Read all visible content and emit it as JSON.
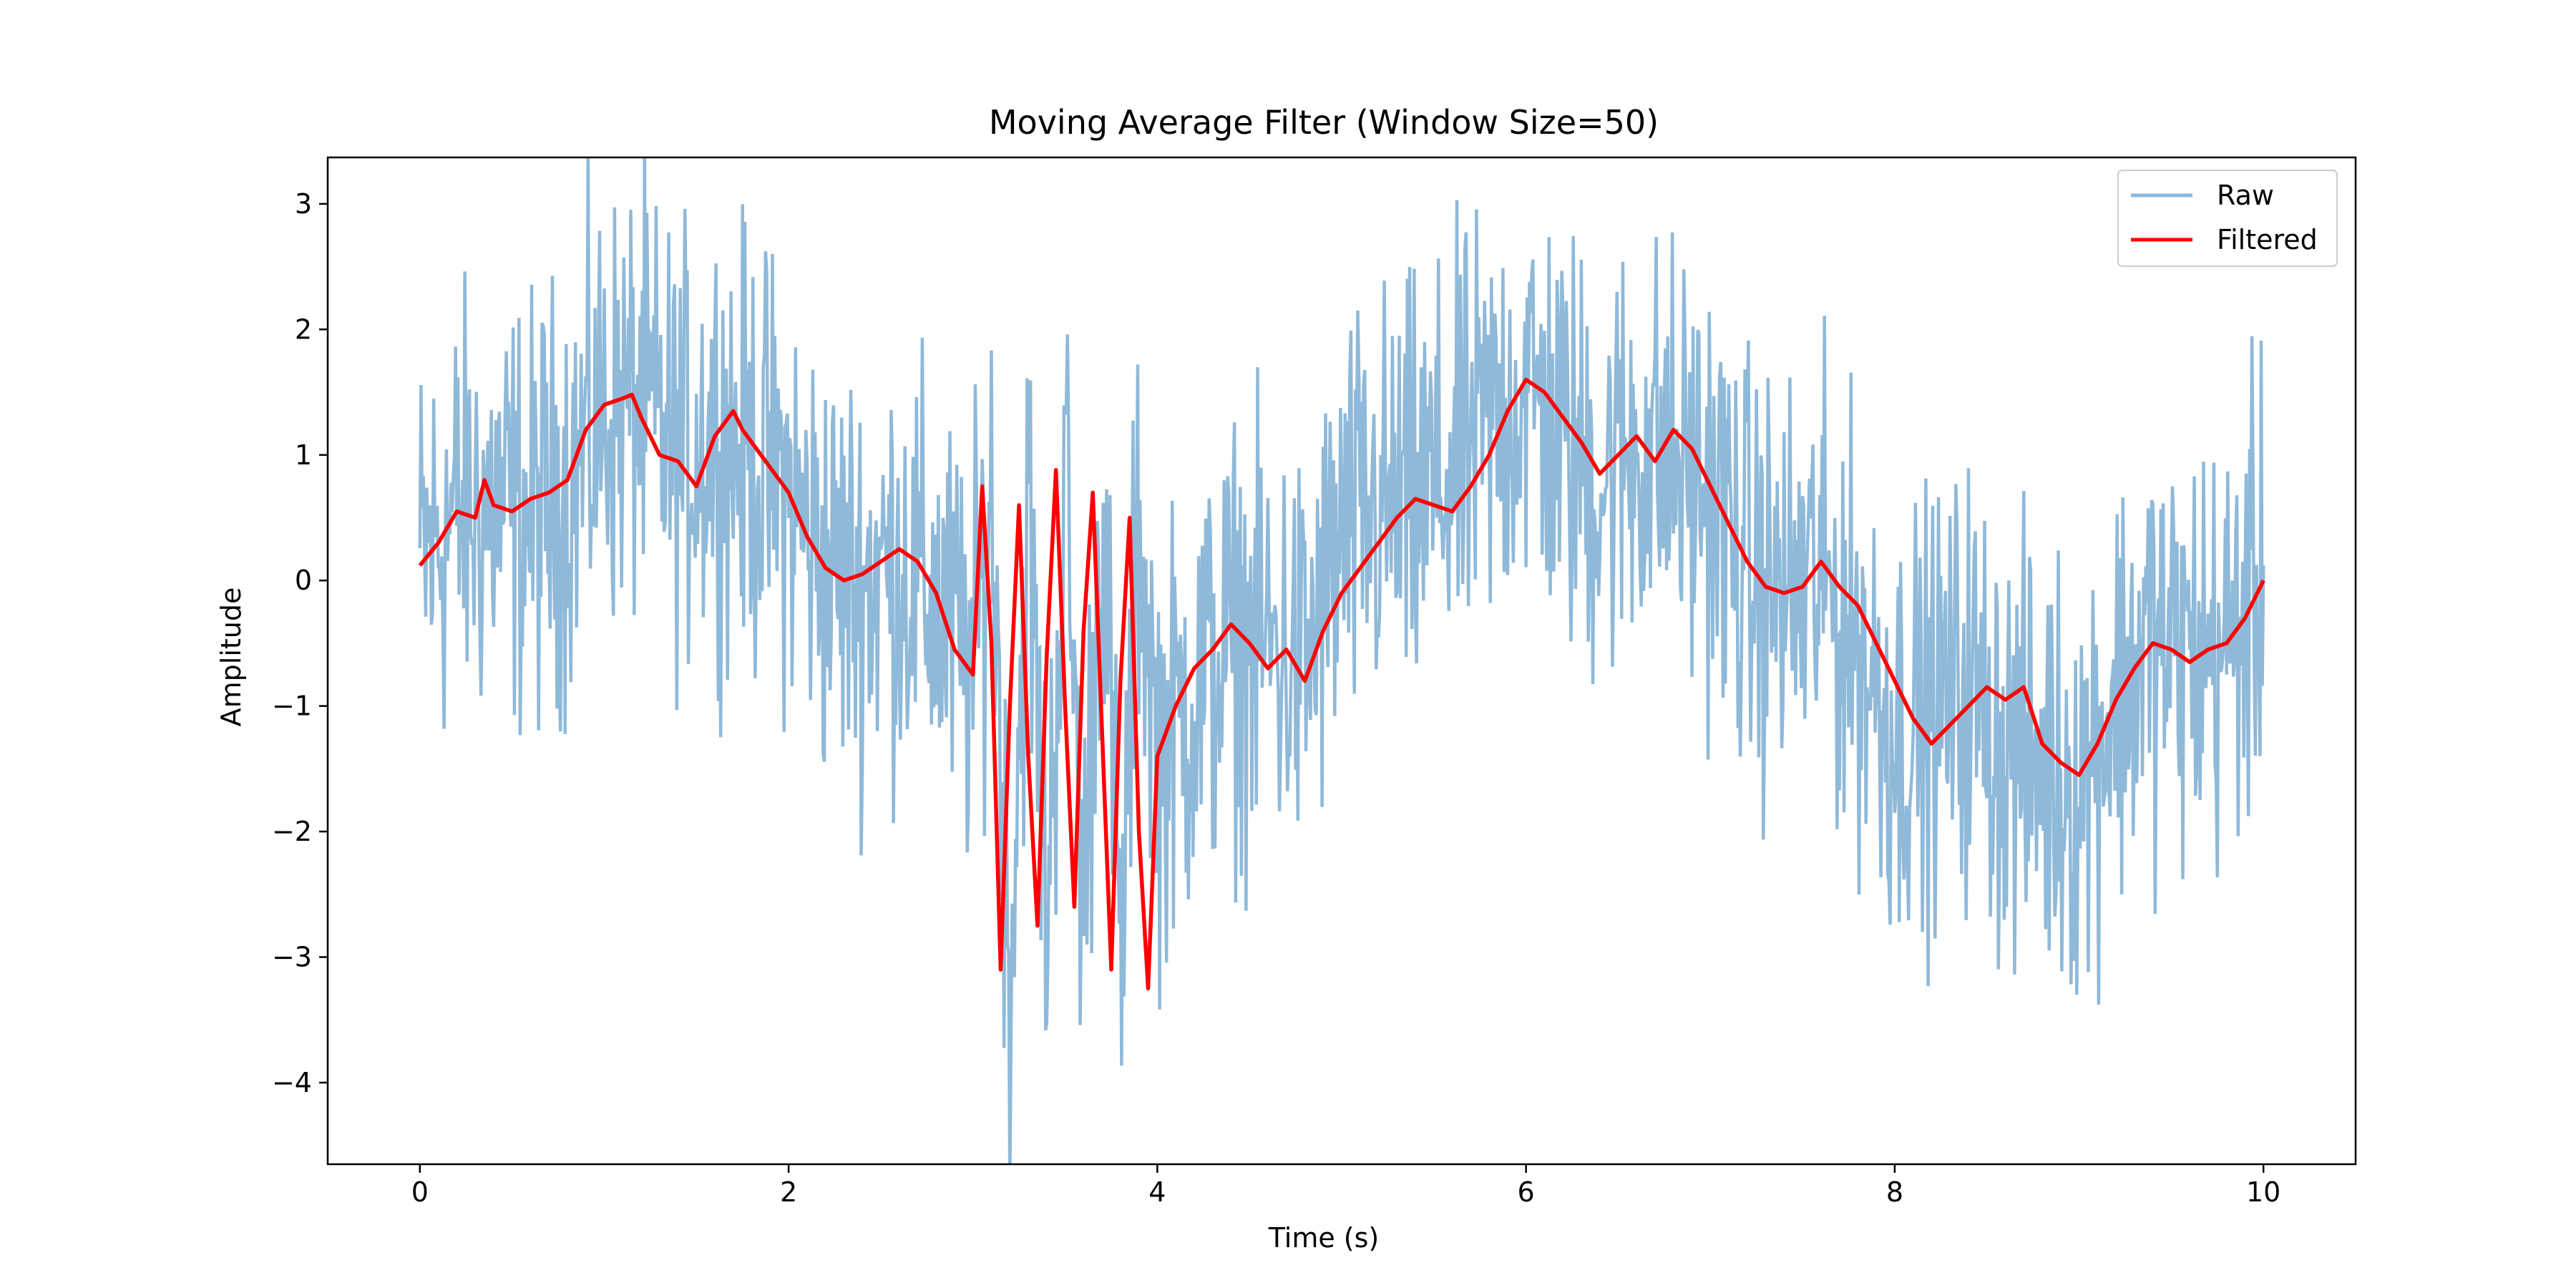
{
  "chart_data": {
    "type": "line",
    "title": "Moving Average Filter (Window Size=50)",
    "xlabel": "Time (s)",
    "ylabel": "Amplitude",
    "xlim": [
      -0.5,
      10.5
    ],
    "ylim": [
      -4.65,
      3.37
    ],
    "xticks": [
      0,
      2,
      4,
      6,
      8,
      10
    ],
    "xtick_labels": [
      "0",
      "2",
      "4",
      "6",
      "8",
      "10"
    ],
    "yticks": [
      -4,
      -3,
      -2,
      -1,
      0,
      1,
      2,
      3
    ],
    "ytick_labels": [
      "−4",
      "−3",
      "−2",
      "−1",
      "0",
      "1",
      "2",
      "3"
    ],
    "grid": false,
    "legend_position": "top-right",
    "series": [
      {
        "name": "Raw",
        "color": "#8fb9d9",
        "noise_amplitude": 0.85,
        "x": [
          0,
          0.2,
          0.4,
          0.6,
          0.8,
          1.0,
          1.2,
          1.4,
          1.6,
          1.8,
          2.0,
          2.2,
          2.4,
          2.6,
          2.8,
          3.0,
          3.1,
          3.2,
          3.3,
          3.4,
          3.5,
          3.6,
          3.7,
          3.8,
          3.9,
          4.0,
          4.2,
          4.4,
          4.6,
          4.8,
          5.0,
          5.2,
          5.4,
          5.6,
          5.8,
          6.0,
          6.2,
          6.4,
          6.6,
          6.8,
          7.0,
          7.2,
          7.4,
          7.6,
          7.8,
          8.0,
          8.2,
          8.4,
          8.6,
          8.8,
          9.0,
          9.2,
          9.4,
          9.6,
          9.8,
          10.0
        ],
        "y": [
          0.1,
          0.55,
          0.6,
          0.5,
          0.75,
          1.35,
          1.4,
          1.0,
          1.2,
          1.0,
          0.7,
          0.1,
          0.0,
          0.15,
          -0.2,
          -0.7,
          0.7,
          -3.1,
          0.6,
          -2.7,
          0.85,
          -2.6,
          0.7,
          -3.1,
          0.5,
          -1.4,
          -0.9,
          -0.5,
          -0.5,
          -0.7,
          0.3,
          0.55,
          0.6,
          0.85,
          1.2,
          1.55,
          1.1,
          0.8,
          1.1,
          0.95,
          0.7,
          0.05,
          -0.15,
          0.0,
          -0.5,
          -1.2,
          -1.05,
          -0.8,
          -1.35,
          -1.45,
          -1.6,
          -0.9,
          -0.5,
          -0.6,
          -0.55,
          0.0
        ]
      },
      {
        "name": "Filtered",
        "color": "#ff0000",
        "x": [
          0,
          0.1,
          0.2,
          0.3,
          0.35,
          0.4,
          0.5,
          0.6,
          0.7,
          0.8,
          0.9,
          1.0,
          1.1,
          1.15,
          1.2,
          1.3,
          1.4,
          1.5,
          1.6,
          1.7,
          1.75,
          1.8,
          1.9,
          2.0,
          2.1,
          2.2,
          2.3,
          2.4,
          2.5,
          2.6,
          2.7,
          2.8,
          2.9,
          3.0,
          3.05,
          3.1,
          3.15,
          3.2,
          3.25,
          3.3,
          3.35,
          3.4,
          3.45,
          3.5,
          3.55,
          3.6,
          3.65,
          3.7,
          3.75,
          3.8,
          3.85,
          3.9,
          3.95,
          4.0,
          4.1,
          4.2,
          4.3,
          4.4,
          4.5,
          4.6,
          4.7,
          4.8,
          4.9,
          5.0,
          5.1,
          5.2,
          5.3,
          5.4,
          5.5,
          5.6,
          5.7,
          5.8,
          5.9,
          6.0,
          6.1,
          6.2,
          6.3,
          6.4,
          6.5,
          6.6,
          6.7,
          6.8,
          6.9,
          7.0,
          7.1,
          7.2,
          7.3,
          7.4,
          7.5,
          7.6,
          7.7,
          7.8,
          7.9,
          8.0,
          8.1,
          8.2,
          8.3,
          8.4,
          8.5,
          8.6,
          8.7,
          8.8,
          8.9,
          9.0,
          9.1,
          9.2,
          9.3,
          9.4,
          9.5,
          9.6,
          9.7,
          9.8,
          9.9,
          10.0
        ],
        "y": [
          0.12,
          0.3,
          0.55,
          0.5,
          0.8,
          0.6,
          0.55,
          0.65,
          0.7,
          0.8,
          1.2,
          1.4,
          1.45,
          1.48,
          1.3,
          1.0,
          0.95,
          0.75,
          1.15,
          1.35,
          1.2,
          1.1,
          0.9,
          0.7,
          0.35,
          0.1,
          0.0,
          0.05,
          0.15,
          0.25,
          0.15,
          -0.1,
          -0.55,
          -0.75,
          0.75,
          -0.5,
          -3.1,
          -1.0,
          0.6,
          -1.4,
          -2.75,
          -0.6,
          0.88,
          -1.0,
          -2.6,
          -0.4,
          0.7,
          -1.2,
          -3.1,
          -0.8,
          0.5,
          -2.0,
          -3.25,
          -1.4,
          -1.0,
          -0.7,
          -0.55,
          -0.35,
          -0.5,
          -0.7,
          -0.55,
          -0.8,
          -0.4,
          -0.1,
          0.1,
          0.3,
          0.5,
          0.65,
          0.6,
          0.55,
          0.75,
          1.0,
          1.35,
          1.6,
          1.5,
          1.3,
          1.1,
          0.85,
          1.0,
          1.15,
          0.95,
          1.2,
          1.05,
          0.75,
          0.45,
          0.15,
          -0.05,
          -0.1,
          -0.05,
          0.15,
          -0.05,
          -0.2,
          -0.5,
          -0.8,
          -1.1,
          -1.3,
          -1.15,
          -1.0,
          -0.85,
          -0.95,
          -0.85,
          -1.3,
          -1.45,
          -1.55,
          -1.3,
          -0.95,
          -0.7,
          -0.5,
          -0.55,
          -0.65,
          -0.55,
          -0.5,
          -0.3,
          0.0
        ]
      }
    ]
  }
}
